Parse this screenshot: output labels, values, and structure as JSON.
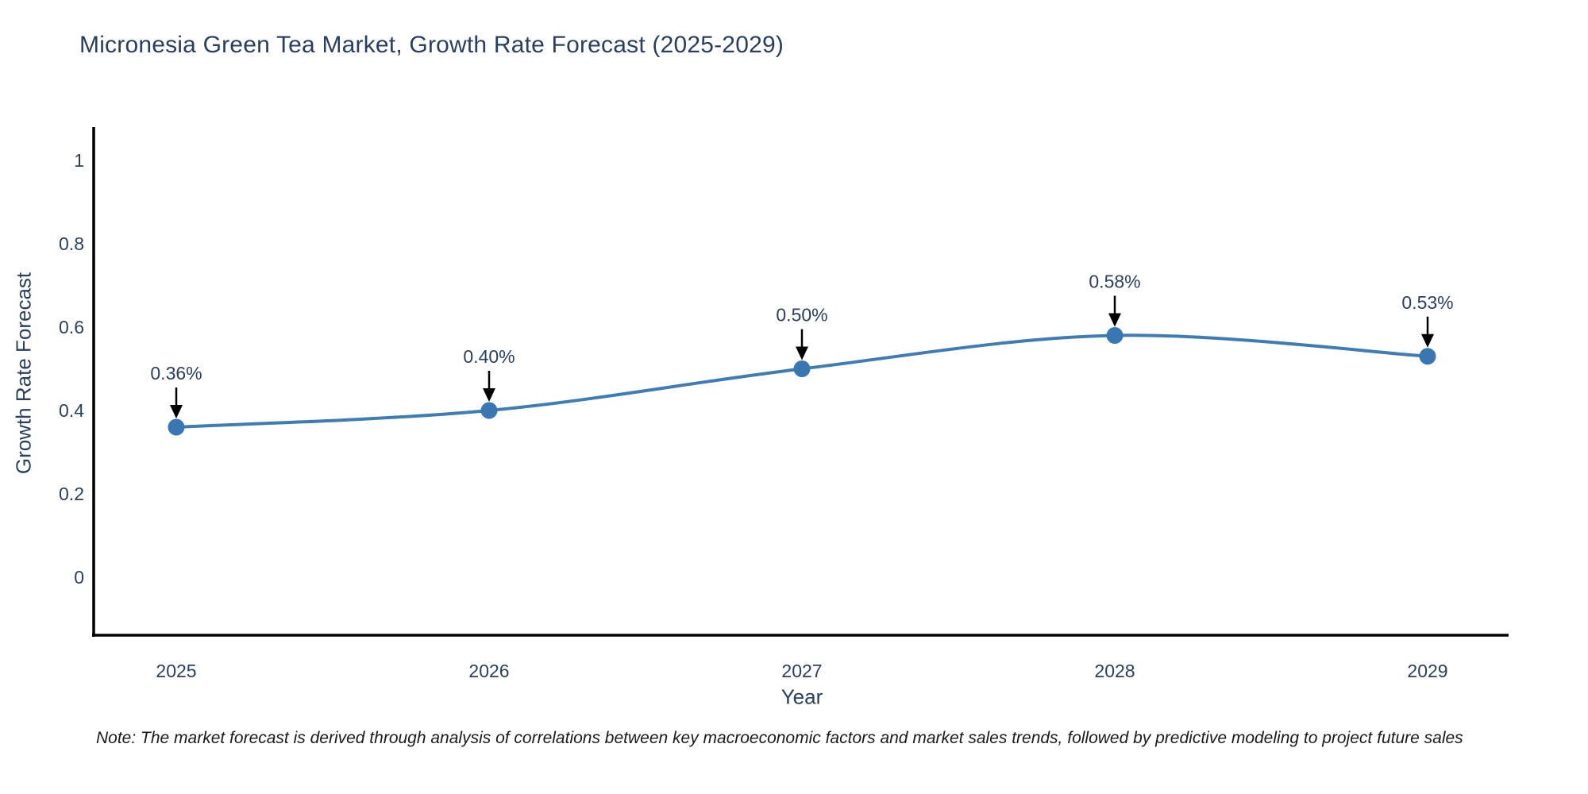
{
  "title": "Micronesia Green Tea Market, Growth Rate Forecast (2025-2029)",
  "note": "Note: The market forecast is derived through analysis of correlations between key macroeconomic factors and market sales trends, followed by predictive modeling to project future sales",
  "chart_data": {
    "type": "line",
    "title": "Micronesia Green Tea Market, Growth Rate Forecast (2025-2029)",
    "xlabel": "Year",
    "ylabel": "Growth Rate Forecast",
    "categories": [
      "2025",
      "2026",
      "2027",
      "2028",
      "2029"
    ],
    "series": [
      {
        "name": "Growth Rate Forecast",
        "values": [
          0.36,
          0.4,
          0.5,
          0.58,
          0.53
        ],
        "point_labels": [
          "0.36%",
          "0.40%",
          "0.50%",
          "0.58%",
          "0.53%"
        ]
      }
    ],
    "yticks": {
      "values": [
        0,
        0.2,
        0.4,
        0.6,
        0.8,
        1
      ],
      "labels": [
        "0",
        "0.2",
        "0.4",
        "0.6",
        "0.8",
        "1"
      ]
    },
    "ylim": [
      -0.14,
      1.08
    ],
    "grid": false,
    "legend": "none",
    "line_shape": "spline",
    "colors": {
      "line": "#3f7cb6",
      "marker": "#3a76b2",
      "axis_line": "#000000",
      "tick_text": "#2a3f5f",
      "title_text": "#2a3f5f",
      "annotation_text": "#2a3f5f",
      "annotation_arrow": "#000000"
    }
  }
}
